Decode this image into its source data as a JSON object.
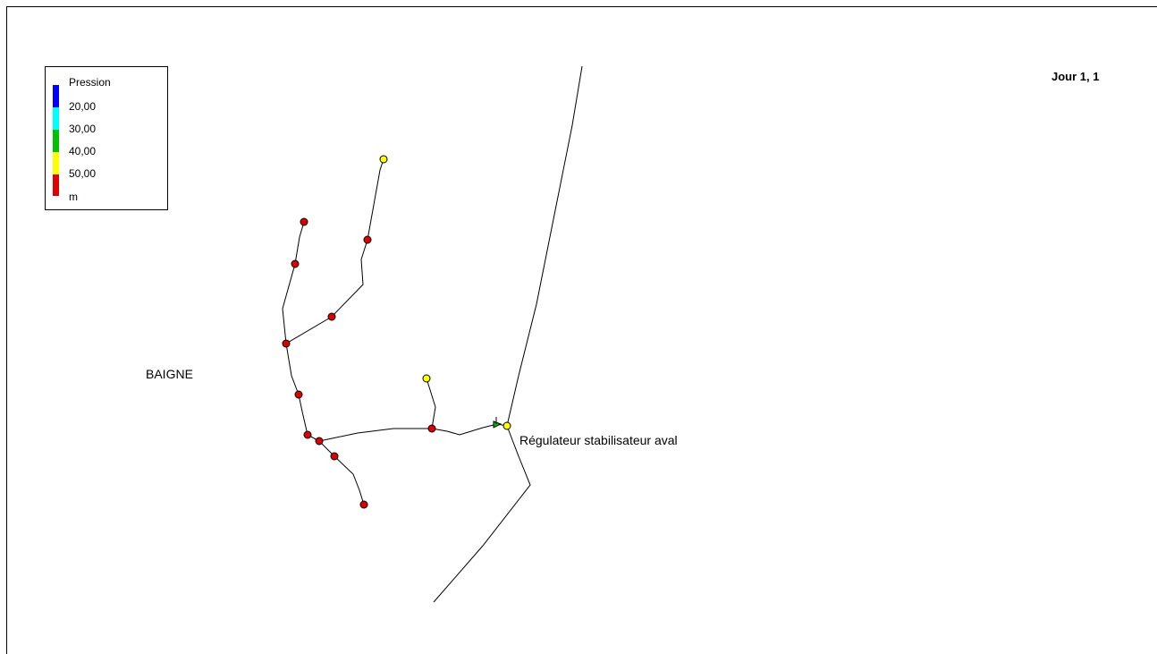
{
  "legend": {
    "title": "Pression",
    "thresholds": [
      "20,00",
      "30,00",
      "40,00",
      "50,00"
    ],
    "unit": "m",
    "colors": [
      "#0000ff",
      "#00ffff",
      "#00c000",
      "#ffff00",
      "#e00000"
    ]
  },
  "time_label": "Jour 1, 1",
  "labels": {
    "town": "BAIGNE",
    "regulator": "Régulateur stabilisateur aval"
  },
  "colors": {
    "pipe": "#000000",
    "high_pressure_node": "#e00000",
    "mid_pressure_node": "#ffff00",
    "valve": "#00c000"
  }
}
